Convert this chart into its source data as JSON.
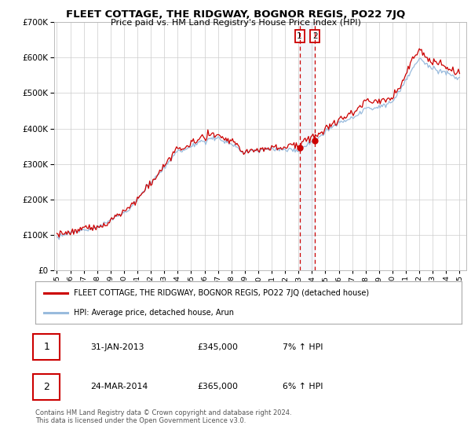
{
  "title": "FLEET COTTAGE, THE RIDGWAY, BOGNOR REGIS, PO22 7JQ",
  "subtitle": "Price paid vs. HM Land Registry's House Price Index (HPI)",
  "legend_line1": "FLEET COTTAGE, THE RIDGWAY, BOGNOR REGIS, PO22 7JQ (detached house)",
  "legend_line2": "HPI: Average price, detached house, Arun",
  "transaction1_label": "1",
  "transaction1_date": "31-JAN-2013",
  "transaction1_price": "£345,000",
  "transaction1_hpi": "7% ↑ HPI",
  "transaction2_label": "2",
  "transaction2_date": "24-MAR-2014",
  "transaction2_price": "£365,000",
  "transaction2_hpi": "6% ↑ HPI",
  "footnote": "Contains HM Land Registry data © Crown copyright and database right 2024.\nThis data is licensed under the Open Government Licence v3.0.",
  "hpi_color": "#99bbdd",
  "property_color": "#cc0000",
  "transaction_vline_color": "#cc0000",
  "background_color": "#ffffff",
  "grid_color": "#cccccc",
  "transaction1_x": 2013.08,
  "transaction2_x": 2014.23,
  "transaction1_y": 345000,
  "transaction2_y": 365000,
  "ylim": [
    0,
    700000
  ],
  "xlim_start": 1994.8,
  "xlim_end": 2025.5
}
